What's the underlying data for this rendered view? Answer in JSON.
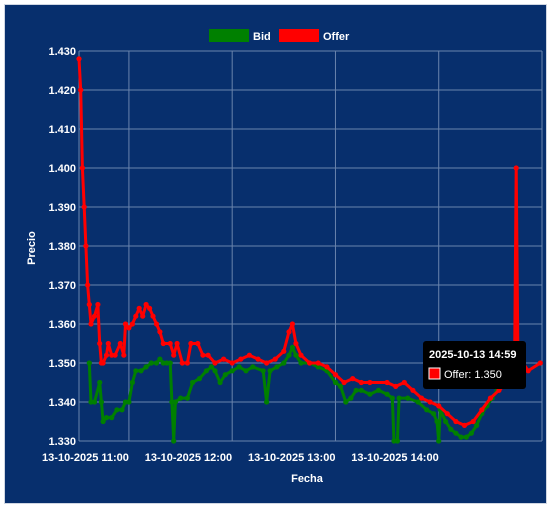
{
  "chart_data": {
    "type": "line",
    "title": "",
    "xlabel": "Fecha",
    "ylabel": "Precio",
    "ylim": [
      1.33,
      1.43
    ],
    "y_ticks": [
      "1.430",
      "1.420",
      "1.410",
      "1.400",
      "1.390",
      "1.380",
      "1.370",
      "1.360",
      "1.350",
      "1.340",
      "1.330"
    ],
    "xlim": [
      "2025-10-13 10:31",
      "2025-10-13 15:00"
    ],
    "x_ticks": [
      {
        "t": "2025-10-13 11:00",
        "label": "13-10-2025 11:00"
      },
      {
        "t": "2025-10-13 12:00",
        "label": "13-10-2025 12:00"
      },
      {
        "t": "2025-10-13 13:00",
        "label": "13-10-2025 13:00"
      },
      {
        "t": "2025-10-13 14:00",
        "label": "13-10-2025 14:00"
      }
    ],
    "grid": true,
    "legend_position": "top-center",
    "series": [
      {
        "name": "Bid",
        "color": "#008000",
        "points": [
          [
            "2025-10-13 10:37",
            1.35
          ],
          [
            "2025-10-13 10:38",
            1.34
          ],
          [
            "2025-10-13 10:40",
            1.34
          ],
          [
            "2025-10-13 10:43",
            1.345
          ],
          [
            "2025-10-13 10:44",
            1.34
          ],
          [
            "2025-10-13 10:45",
            1.335
          ],
          [
            "2025-10-13 10:47",
            1.336
          ],
          [
            "2025-10-13 10:50",
            1.336
          ],
          [
            "2025-10-13 10:53",
            1.338
          ],
          [
            "2025-10-13 10:56",
            1.338
          ],
          [
            "2025-10-13 10:58",
            1.34
          ],
          [
            "2025-10-13 11:00",
            1.34
          ],
          [
            "2025-10-13 11:02",
            1.345
          ],
          [
            "2025-10-13 11:04",
            1.348
          ],
          [
            "2025-10-13 11:07",
            1.348
          ],
          [
            "2025-10-13 11:10",
            1.349
          ],
          [
            "2025-10-13 11:13",
            1.35
          ],
          [
            "2025-10-13 11:16",
            1.35
          ],
          [
            "2025-10-13 11:18",
            1.351
          ],
          [
            "2025-10-13 11:20",
            1.35
          ],
          [
            "2025-10-13 11:22",
            1.35
          ],
          [
            "2025-10-13 11:24",
            1.35
          ],
          [
            "2025-10-13 11:25",
            1.34
          ],
          [
            "2025-10-13 11:26",
            1.33
          ],
          [
            "2025-10-13 11:27",
            1.34
          ],
          [
            "2025-10-13 11:30",
            1.341
          ],
          [
            "2025-10-13 11:34",
            1.341
          ],
          [
            "2025-10-13 11:37",
            1.345
          ],
          [
            "2025-10-13 11:41",
            1.346
          ],
          [
            "2025-10-13 11:45",
            1.348
          ],
          [
            "2025-10-13 11:48",
            1.349
          ],
          [
            "2025-10-13 11:50",
            1.348
          ],
          [
            "2025-10-13 11:53",
            1.345
          ],
          [
            "2025-10-13 11:56",
            1.347
          ],
          [
            "2025-10-13 12:00",
            1.348
          ],
          [
            "2025-10-13 12:04",
            1.349
          ],
          [
            "2025-10-13 12:08",
            1.348
          ],
          [
            "2025-10-13 12:12",
            1.349
          ],
          [
            "2025-10-13 12:18",
            1.348
          ],
          [
            "2025-10-13 12:20",
            1.34
          ],
          [
            "2025-10-13 12:22",
            1.348
          ],
          [
            "2025-10-13 12:26",
            1.349
          ],
          [
            "2025-10-13 12:30",
            1.35
          ],
          [
            "2025-10-13 12:33",
            1.352
          ],
          [
            "2025-10-13 12:35",
            1.354
          ],
          [
            "2025-10-13 12:37",
            1.352
          ],
          [
            "2025-10-13 12:40",
            1.35
          ],
          [
            "2025-10-13 12:45",
            1.35
          ],
          [
            "2025-10-13 12:50",
            1.349
          ],
          [
            "2025-10-13 12:55",
            1.348
          ],
          [
            "2025-10-13 13:00",
            1.345
          ],
          [
            "2025-10-13 13:03",
            1.344
          ],
          [
            "2025-10-13 13:06",
            1.34
          ],
          [
            "2025-10-13 13:09",
            1.341
          ],
          [
            "2025-10-13 13:12",
            1.343
          ],
          [
            "2025-10-13 13:15",
            1.343
          ],
          [
            "2025-10-13 13:20",
            1.342
          ],
          [
            "2025-10-13 13:25",
            1.343
          ],
          [
            "2025-10-13 13:30",
            1.342
          ],
          [
            "2025-10-13 13:33",
            1.341
          ],
          [
            "2025-10-13 13:34",
            1.33
          ],
          [
            "2025-10-13 13:36",
            1.33
          ],
          [
            "2025-10-13 13:37",
            1.341
          ],
          [
            "2025-10-13 13:42",
            1.341
          ],
          [
            "2025-10-13 13:48",
            1.34
          ],
          [
            "2025-10-13 13:53",
            1.338
          ],
          [
            "2025-10-13 13:57",
            1.337
          ],
          [
            "2025-10-13 13:59",
            1.335
          ],
          [
            "2025-10-13 14:00",
            1.33
          ],
          [
            "2025-10-13 14:01",
            1.338
          ],
          [
            "2025-10-13 14:04",
            1.335
          ],
          [
            "2025-10-13 14:07",
            1.333
          ],
          [
            "2025-10-13 14:10",
            1.332
          ],
          [
            "2025-10-13 14:13",
            1.331
          ],
          [
            "2025-10-13 14:16",
            1.331
          ],
          [
            "2025-10-13 14:19",
            1.332
          ],
          [
            "2025-10-13 14:22",
            1.334
          ],
          [
            "2025-10-13 14:25",
            1.337
          ],
          [
            "2025-10-13 14:28",
            1.339
          ],
          [
            "2025-10-13 14:31",
            1.341
          ],
          [
            "2025-10-13 14:34",
            1.343
          ],
          [
            "2025-10-13 14:37",
            1.344
          ],
          [
            "2025-10-13 14:40",
            1.346
          ],
          [
            "2025-10-13 14:43",
            1.347
          ]
        ]
      },
      {
        "name": "Offer",
        "color": "#ff0000",
        "points": [
          [
            "2025-10-13 10:31",
            1.428
          ],
          [
            "2025-10-13 10:32",
            1.42
          ],
          [
            "2025-10-13 10:33",
            1.4
          ],
          [
            "2025-10-13 10:34",
            1.39
          ],
          [
            "2025-10-13 10:35",
            1.38
          ],
          [
            "2025-10-13 10:36",
            1.37
          ],
          [
            "2025-10-13 10:37",
            1.365
          ],
          [
            "2025-10-13 10:38",
            1.36
          ],
          [
            "2025-10-13 10:40",
            1.362
          ],
          [
            "2025-10-13 10:42",
            1.365
          ],
          [
            "2025-10-13 10:43",
            1.355
          ],
          [
            "2025-10-13 10:44",
            1.35
          ],
          [
            "2025-10-13 10:45",
            1.35
          ],
          [
            "2025-10-13 10:47",
            1.352
          ],
          [
            "2025-10-13 10:48",
            1.355
          ],
          [
            "2025-10-13 10:50",
            1.352
          ],
          [
            "2025-10-13 10:52",
            1.352
          ],
          [
            "2025-10-13 10:55",
            1.355
          ],
          [
            "2025-10-13 10:57",
            1.352
          ],
          [
            "2025-10-13 10:58",
            1.36
          ],
          [
            "2025-10-13 11:00",
            1.359
          ],
          [
            "2025-10-13 11:02",
            1.36
          ],
          [
            "2025-10-13 11:04",
            1.362
          ],
          [
            "2025-10-13 11:06",
            1.364
          ],
          [
            "2025-10-13 11:08",
            1.362
          ],
          [
            "2025-10-13 11:10",
            1.365
          ],
          [
            "2025-10-13 11:12",
            1.364
          ],
          [
            "2025-10-13 11:14",
            1.362
          ],
          [
            "2025-10-13 11:16",
            1.36
          ],
          [
            "2025-10-13 11:18",
            1.358
          ],
          [
            "2025-10-13 11:20",
            1.355
          ],
          [
            "2025-10-13 11:24",
            1.355
          ],
          [
            "2025-10-13 11:26",
            1.352
          ],
          [
            "2025-10-13 11:28",
            1.355
          ],
          [
            "2025-10-13 11:31",
            1.35
          ],
          [
            "2025-10-13 11:34",
            1.35
          ],
          [
            "2025-10-13 11:36",
            1.355
          ],
          [
            "2025-10-13 11:40",
            1.355
          ],
          [
            "2025-10-13 11:43",
            1.352
          ],
          [
            "2025-10-13 11:46",
            1.352
          ],
          [
            "2025-10-13 11:50",
            1.35
          ],
          [
            "2025-10-13 11:55",
            1.351
          ],
          [
            "2025-10-13 12:00",
            1.35
          ],
          [
            "2025-10-13 12:05",
            1.351
          ],
          [
            "2025-10-13 12:10",
            1.352
          ],
          [
            "2025-10-13 12:15",
            1.351
          ],
          [
            "2025-10-13 12:20",
            1.35
          ],
          [
            "2025-10-13 12:25",
            1.351
          ],
          [
            "2025-10-13 12:30",
            1.353
          ],
          [
            "2025-10-13 12:33",
            1.358
          ],
          [
            "2025-10-13 12:35",
            1.36
          ],
          [
            "2025-10-13 12:37",
            1.355
          ],
          [
            "2025-10-13 12:40",
            1.352
          ],
          [
            "2025-10-13 12:45",
            1.35
          ],
          [
            "2025-10-13 12:50",
            1.35
          ],
          [
            "2025-10-13 12:55",
            1.349
          ],
          [
            "2025-10-13 13:00",
            1.347
          ],
          [
            "2025-10-13 13:05",
            1.345
          ],
          [
            "2025-10-13 13:10",
            1.346
          ],
          [
            "2025-10-13 13:15",
            1.345
          ],
          [
            "2025-10-13 13:20",
            1.345
          ],
          [
            "2025-10-13 13:30",
            1.345
          ],
          [
            "2025-10-13 13:35",
            1.344
          ],
          [
            "2025-10-13 13:40",
            1.345
          ],
          [
            "2025-10-13 13:45",
            1.343
          ],
          [
            "2025-10-13 13:50",
            1.341
          ],
          [
            "2025-10-13 13:55",
            1.34
          ],
          [
            "2025-10-13 14:00",
            1.339
          ],
          [
            "2025-10-13 14:05",
            1.337
          ],
          [
            "2025-10-13 14:10",
            1.335
          ],
          [
            "2025-10-13 14:15",
            1.334
          ],
          [
            "2025-10-13 14:20",
            1.335
          ],
          [
            "2025-10-13 14:25",
            1.338
          ],
          [
            "2025-10-13 14:30",
            1.341
          ],
          [
            "2025-10-13 14:35",
            1.343
          ],
          [
            "2025-10-13 14:40",
            1.345
          ],
          [
            "2025-10-13 14:44",
            1.347
          ],
          [
            "2025-10-13 14:45",
            1.4
          ],
          [
            "2025-10-13 14:46",
            1.352
          ],
          [
            "2025-10-13 14:52",
            1.348
          ],
          [
            "2025-10-13 14:59",
            1.35
          ]
        ]
      }
    ]
  },
  "legend": [
    {
      "label": "Bid",
      "color": "#008000"
    },
    {
      "label": "Offer",
      "color": "#ff0000"
    }
  ],
  "tooltip": {
    "title": "2025-10-13 14:59",
    "line": "Offer: 1.350",
    "color": "#ff0000"
  },
  "colors": {
    "background": "#072f6d",
    "grid": "#6a84ad",
    "text": "#ffffff"
  }
}
